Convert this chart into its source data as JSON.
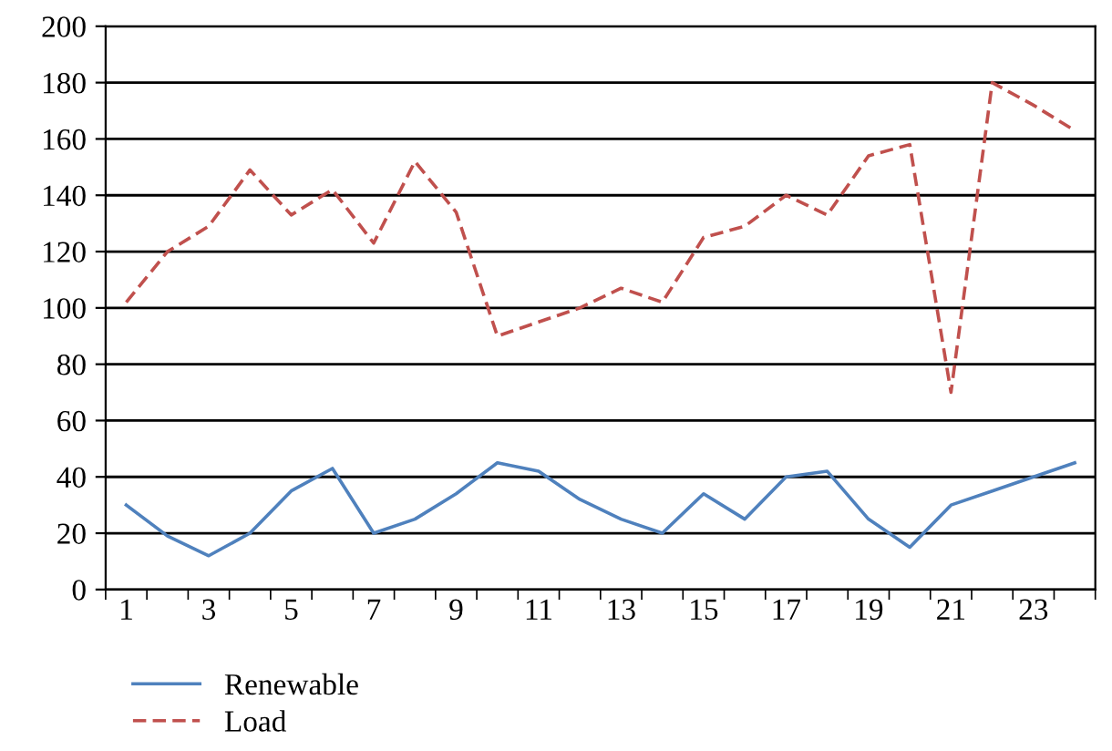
{
  "chart_data": {
    "type": "line",
    "categories": [
      "1",
      null,
      "3",
      null,
      "5",
      null,
      "7",
      null,
      "9",
      null,
      "11",
      null,
      "13",
      null,
      "15",
      null,
      "17",
      null,
      "19",
      null,
      "21",
      null,
      "23",
      null
    ],
    "series": [
      {
        "name": "Renewable",
        "color": "#4f81bd",
        "line_style": "solid",
        "values": [
          30,
          19,
          12,
          20,
          35,
          43,
          20,
          25,
          34,
          45,
          42,
          32,
          25,
          20,
          34,
          25,
          40,
          42,
          25,
          15,
          30,
          35,
          40,
          45
        ]
      },
      {
        "name": "Load",
        "color": "#c0504d",
        "line_style": "dashed",
        "values": [
          102,
          120,
          129,
          149,
          133,
          142,
          123,
          152,
          134,
          90,
          95,
          100,
          107,
          102,
          125,
          129,
          140,
          133,
          154,
          158,
          70,
          180,
          172,
          163
        ]
      }
    ],
    "ylim": [
      0,
      200
    ],
    "yticks": [
      0,
      20,
      40,
      60,
      80,
      100,
      120,
      140,
      160,
      180,
      200
    ],
    "grid": "y",
    "legend": "bottom left",
    "marker": "none"
  }
}
